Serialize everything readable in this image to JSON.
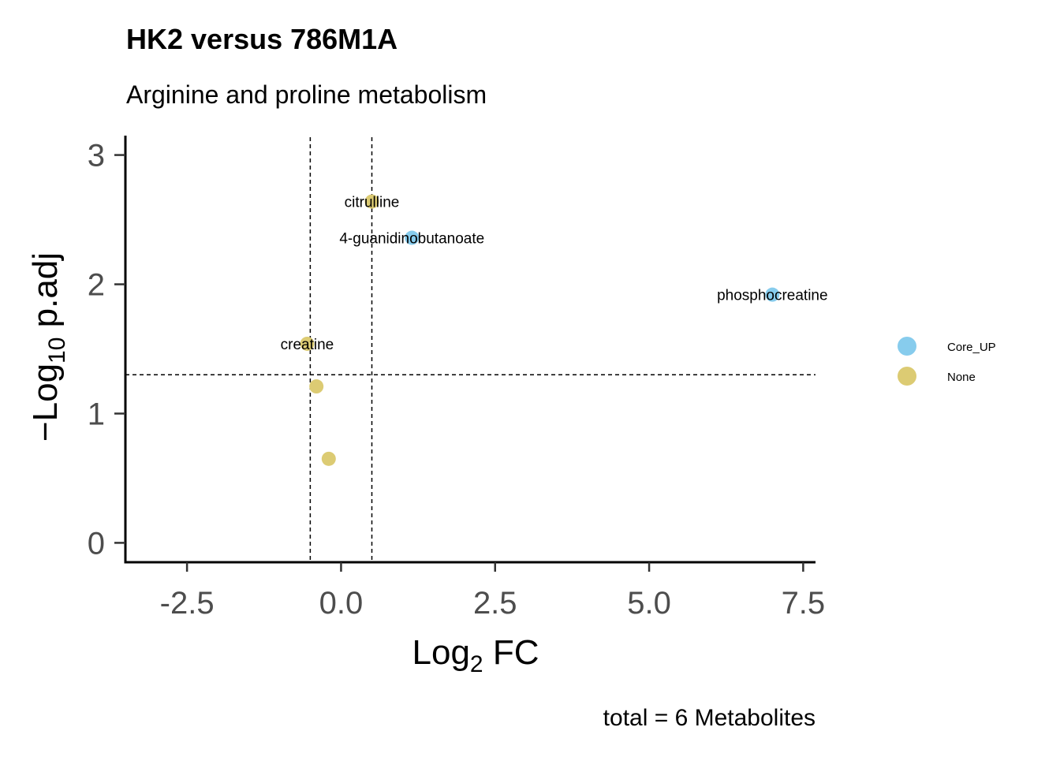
{
  "title": "HK2 versus 786M1A",
  "subtitle": "Arginine and proline metabolism",
  "caption": "total = 6 Metabolites",
  "chart_data": {
    "type": "scatter",
    "xlabel": {
      "base": "Log",
      "sub": "2",
      "rest": " FC"
    },
    "ylabel": {
      "prefix": "−Log",
      "sub": "10",
      "rest": " p.adj"
    },
    "xlim": [
      -3.5,
      7.7
    ],
    "ylim": [
      -0.15,
      3.15
    ],
    "xticks": [
      -2.5,
      0.0,
      2.5,
      5.0,
      7.5
    ],
    "xtick_labels": [
      "-2.5",
      "0.0",
      "2.5",
      "5.0",
      "7.5"
    ],
    "yticks": [
      0,
      1,
      2,
      3
    ],
    "ytick_labels": [
      "0",
      "1",
      "2",
      "3"
    ],
    "grid": false,
    "vlines": [
      -0.5,
      0.5
    ],
    "hlines": [
      1.3
    ],
    "legend_position": "right",
    "series": [
      {
        "name": "Core_UP",
        "color": "#87cced",
        "points": [
          {
            "x": 1.15,
            "y": 2.36,
            "label": "4-guanidinobutanoate"
          },
          {
            "x": 7.0,
            "y": 1.92,
            "label": "phosphocreatine"
          }
        ]
      },
      {
        "name": "None",
        "color": "#dccb73",
        "points": [
          {
            "x": 0.5,
            "y": 2.64,
            "label": "citrulline"
          },
          {
            "x": -0.55,
            "y": 1.54,
            "label": "creatine"
          },
          {
            "x": -0.4,
            "y": 1.21,
            "label": ""
          },
          {
            "x": -0.2,
            "y": 0.65,
            "label": ""
          }
        ]
      }
    ]
  }
}
